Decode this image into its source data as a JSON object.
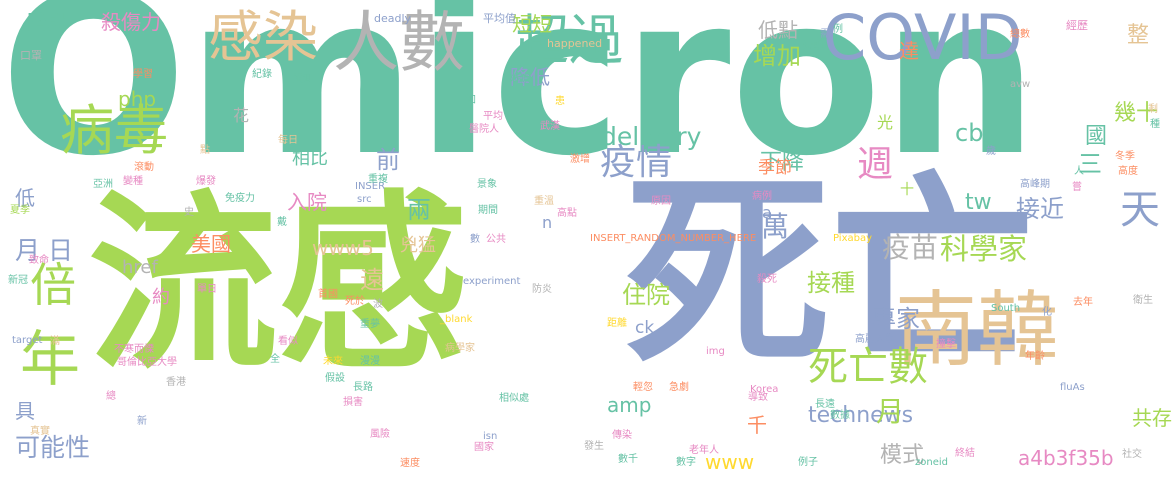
{
  "palette": {
    "teal": "#66c2a5",
    "orange": "#fc8d62",
    "blue": "#8da0cb",
    "pink": "#e78ac3",
    "green": "#a6d854",
    "yellow": "#ffd92f",
    "tan": "#e5c494",
    "gray": "#b3b3b3"
  },
  "words": [
    {
      "t": "Omicron",
      "c": "teal"
    },
    {
      "t": "流感",
      "c": "green"
    },
    {
      "t": "死亡",
      "c": "blue"
    },
    {
      "t": "南韓",
      "c": "tan"
    },
    {
      "t": "COVID",
      "c": "blue"
    },
    {
      "t": "人數",
      "c": "gray"
    },
    {
      "t": "感染",
      "c": "tan"
    },
    {
      "t": "超過",
      "c": "teal"
    },
    {
      "t": "病毒",
      "c": "green"
    },
    {
      "t": "年",
      "c": "green"
    },
    {
      "t": "倍",
      "c": "green"
    },
    {
      "t": "死亡數",
      "c": "green"
    },
    {
      "t": "疫情",
      "c": "blue"
    },
    {
      "t": "週",
      "c": "pink"
    },
    {
      "t": "technews",
      "c": "blue"
    },
    {
      "t": "科學家",
      "c": "green"
    },
    {
      "t": "接種",
      "c": "green"
    },
    {
      "t": "住院",
      "c": "green"
    },
    {
      "t": "疫苗",
      "c": "gray"
    },
    {
      "t": "專家",
      "c": "blue"
    },
    {
      "t": "可能性",
      "c": "blue"
    },
    {
      "t": "增加",
      "c": "green"
    },
    {
      "t": "delivery",
      "c": "teal"
    },
    {
      "t": "a4b3f35b",
      "c": "pink"
    },
    {
      "t": "月",
      "c": "blue"
    },
    {
      "t": "日",
      "c": "blue"
    },
    {
      "t": "月",
      "c": "green"
    },
    {
      "t": "天",
      "c": "blue"
    },
    {
      "t": "兩",
      "c": "teal"
    },
    {
      "t": "萬",
      "c": "blue"
    },
    {
      "t": "前",
      "c": "blue"
    },
    {
      "t": "三",
      "c": "teal"
    },
    {
      "t": "cb",
      "c": "teal"
    },
    {
      "t": "國",
      "c": "teal"
    },
    {
      "t": "www5",
      "c": "tan"
    },
    {
      "t": "www",
      "c": "yellow"
    },
    {
      "t": "amp",
      "c": "teal"
    },
    {
      "t": "模式",
      "c": "gray"
    },
    {
      "t": "共存",
      "c": "green"
    },
    {
      "t": "接近",
      "c": "blue"
    },
    {
      "t": "幾十",
      "c": "green"
    },
    {
      "t": "入院",
      "c": "pink"
    },
    {
      "t": "美國",
      "c": "orange"
    },
    {
      "t": "兇猛",
      "c": "tan"
    },
    {
      "t": "遠",
      "c": "tan"
    },
    {
      "t": "下降",
      "c": "teal"
    },
    {
      "t": "降低",
      "c": "blue"
    },
    {
      "t": "低點",
      "c": "gray"
    },
    {
      "t": "短短",
      "c": "green"
    },
    {
      "t": "php",
      "c": "green"
    },
    {
      "t": "tw",
      "c": "teal"
    },
    {
      "t": "階段",
      "c": "teal"
    },
    {
      "t": "殺傷力",
      "c": "pink"
    },
    {
      "t": "達",
      "c": "orange"
    },
    {
      "t": "整",
      "c": "tan"
    },
    {
      "t": "低",
      "c": "blue"
    },
    {
      "t": "具",
      "c": "blue"
    },
    {
      "t": "千",
      "c": "orange"
    },
    {
      "t": "href",
      "c": "gray"
    },
    {
      "t": "約",
      "c": "pink"
    },
    {
      "t": "ck",
      "c": "blue"
    },
    {
      "t": "相比",
      "c": "teal"
    },
    {
      "t": "季節",
      "c": "orange"
    },
    {
      "t": "光",
      "c": "green"
    },
    {
      "t": "花",
      "c": "gray"
    },
    {
      "t": "a",
      "c": "blue"
    },
    {
      "t": "n",
      "c": "blue"
    },
    {
      "t": "deadly",
      "c": "blue"
    },
    {
      "t": "平均值",
      "c": "blue"
    },
    {
      "t": "經歷",
      "c": "pink"
    },
    {
      "t": "口罩",
      "c": "gray"
    },
    {
      "t": "happened",
      "c": "tan"
    },
    {
      "t": "學習",
      "c": "orange"
    },
    {
      "t": "紀錄",
      "c": "teal"
    },
    {
      "t": "預測",
      "c": "teal"
    },
    {
      "t": "來源",
      "c": "teal"
    },
    {
      "t": "總數",
      "c": "orange"
    },
    {
      "t": "短期",
      "c": "teal"
    },
    {
      "t": "需",
      "c": "blue"
    },
    {
      "t": "avw",
      "c": "gray"
    },
    {
      "t": "知",
      "c": "teal"
    },
    {
      "t": "平均",
      "c": "pink"
    },
    {
      "t": "患",
      "c": "yellow"
    },
    {
      "t": "醫院人",
      "c": "pink"
    },
    {
      "t": "激增",
      "c": "orange"
    },
    {
      "t": "武漢",
      "c": "pink"
    },
    {
      "t": "每日",
      "c": "tan"
    },
    {
      "t": "點",
      "c": "tan"
    },
    {
      "t": "滾動",
      "c": "orange"
    },
    {
      "t": "亞洲",
      "c": "teal"
    },
    {
      "t": "變種",
      "c": "pink"
    },
    {
      "t": "爆發",
      "c": "pink"
    },
    {
      "t": "免疫力",
      "c": "teal"
    },
    {
      "t": "INSER",
      "c": "blue"
    },
    {
      "t": "src",
      "c": "blue"
    },
    {
      "t": "重複",
      "c": "teal"
    },
    {
      "t": "景象",
      "c": "teal"
    },
    {
      "t": "期間",
      "c": "teal"
    },
    {
      "t": "重溫",
      "c": "tan"
    },
    {
      "t": "高點",
      "c": "pink"
    },
    {
      "t": "原因",
      "c": "pink"
    },
    {
      "t": "病例",
      "c": "pink"
    },
    {
      "t": "歲",
      "c": "blue"
    },
    {
      "t": "高峰期",
      "c": "blue"
    },
    {
      "t": "冬季",
      "c": "orange"
    },
    {
      "t": "高度",
      "c": "orange"
    },
    {
      "t": "夏季",
      "c": "green"
    },
    {
      "t": "史",
      "c": "gray"
    },
    {
      "t": "戴",
      "c": "teal"
    },
    {
      "t": "INSERT_RANDOM_NUMBER_HERE",
      "c": "orange"
    },
    {
      "t": "Pixabay",
      "c": "yellow"
    },
    {
      "t": "數",
      "c": "blue"
    },
    {
      "t": "公共",
      "c": "pink"
    },
    {
      "t": "致命",
      "c": "pink"
    },
    {
      "t": "新冠",
      "c": "teal"
    },
    {
      "t": "單日",
      "c": "pink"
    },
    {
      "t": "首國",
      "c": "orange"
    },
    {
      "t": "死於",
      "c": "orange"
    },
    {
      "t": "波",
      "c": "gray"
    },
    {
      "t": "experiment",
      "c": "blue"
    },
    {
      "t": "防炎",
      "c": "gray"
    },
    {
      "t": "_blank",
      "c": "yellow"
    },
    {
      "t": "距離",
      "c": "yellow"
    },
    {
      "t": "殺死",
      "c": "pink"
    },
    {
      "t": "去年",
      "c": "orange"
    },
    {
      "t": "衛生",
      "c": "gray"
    },
    {
      "t": "South",
      "c": "teal"
    },
    {
      "t": "化",
      "c": "blue"
    },
    {
      "t": "target",
      "c": "blue"
    },
    {
      "t": "滿",
      "c": "tan"
    },
    {
      "t": "看似",
      "c": "pink"
    },
    {
      "t": "重夢",
      "c": "teal"
    },
    {
      "t": "病學家",
      "c": "tan"
    },
    {
      "t": "不寒而慄",
      "c": "pink"
    },
    {
      "t": "哥倫比亞大學",
      "c": "pink"
    },
    {
      "t": "全",
      "c": "teal"
    },
    {
      "t": "未來",
      "c": "yellow"
    },
    {
      "t": "漫漫",
      "c": "teal"
    },
    {
      "t": "img",
      "c": "pink"
    },
    {
      "t": "高麗大學",
      "c": "blue"
    },
    {
      "t": "撞擊",
      "c": "pink"
    },
    {
      "t": "年齡",
      "c": "orange"
    },
    {
      "t": "fluAs",
      "c": "blue"
    },
    {
      "t": "香港",
      "c": "gray"
    },
    {
      "t": "假設",
      "c": "teal"
    },
    {
      "t": "長路",
      "c": "teal"
    },
    {
      "t": "輕忽",
      "c": "orange"
    },
    {
      "t": "急劇",
      "c": "orange"
    },
    {
      "t": "Korea",
      "c": "pink"
    },
    {
      "t": "總",
      "c": "pink"
    },
    {
      "t": "損害",
      "c": "pink"
    },
    {
      "t": "相似處",
      "c": "teal"
    },
    {
      "t": "導致",
      "c": "pink"
    },
    {
      "t": "長遠",
      "c": "teal"
    },
    {
      "t": "數據",
      "c": "teal"
    },
    {
      "t": "新",
      "c": "blue"
    },
    {
      "t": "真實",
      "c": "tan"
    },
    {
      "t": "風險",
      "c": "pink"
    },
    {
      "t": "isn",
      "c": "blue"
    },
    {
      "t": "國家",
      "c": "pink"
    },
    {
      "t": "發生",
      "c": "gray"
    },
    {
      "t": "傳染",
      "c": "pink"
    },
    {
      "t": "老年人",
      "c": "pink"
    },
    {
      "t": "數千",
      "c": "teal"
    },
    {
      "t": "數字",
      "c": "teal"
    },
    {
      "t": "例子",
      "c": "teal"
    },
    {
      "t": "速度",
      "c": "orange"
    },
    {
      "t": "zoneid",
      "c": "teal"
    },
    {
      "t": "終結",
      "c": "pink"
    },
    {
      "t": "社交",
      "c": "gray"
    },
    {
      "t": "例",
      "c": "teal"
    },
    {
      "t": "剩",
      "c": "tan"
    },
    {
      "t": "種",
      "c": "teal"
    },
    {
      "t": "人",
      "c": "teal"
    },
    {
      "t": "十",
      "c": "green"
    },
    {
      "t": "嘗",
      "c": "pink"
    }
  ]
}
